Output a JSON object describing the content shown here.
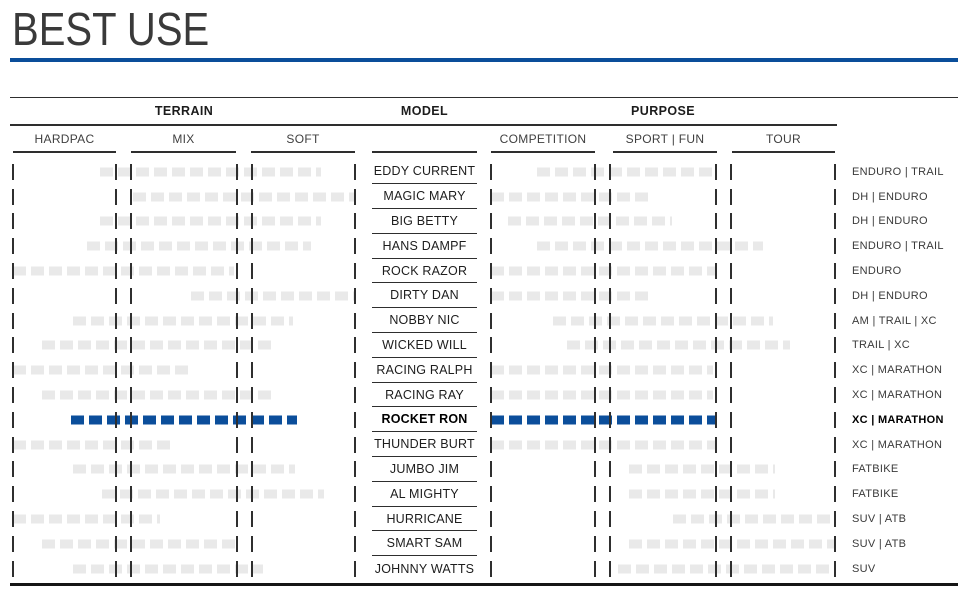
{
  "title": "BEST USE",
  "colors": {
    "accent_blue": "#0a4e9a",
    "bar_gray": "#e9e9e9",
    "bar_highlight_blue": "#0b4e9b"
  },
  "table": {
    "groups": [
      {
        "id": "terrain",
        "label": "TERRAIN",
        "subcolumns": [
          "HARDPAC",
          "MIX",
          "SOFT"
        ]
      },
      {
        "id": "model",
        "label": "MODEL"
      },
      {
        "id": "purpose",
        "label": "PURPOSE",
        "subcolumns": [
          "COMPETITION",
          "SPORT | FUN",
          "TOUR"
        ]
      }
    ]
  },
  "chart_data": {
    "type": "table",
    "title": "BEST USE",
    "terrain_scale": [
      "HARDPAC",
      "MIX",
      "SOFT"
    ],
    "purpose_scale": [
      "COMPETITION",
      "SPORT | FUN",
      "TOUR"
    ],
    "range_units": "percent of scale strip, 0-100",
    "rows": [
      {
        "model": "EDDY CURRENT",
        "best_use": "ENDURO | TRAIL",
        "terrain": [
          25.5,
          90
        ],
        "purpose": [
          13.5,
          65
        ],
        "highlight": false
      },
      {
        "model": "MAGIC MARY",
        "best_use": "DH | ENDURO",
        "terrain": [
          35,
          100
        ],
        "purpose": [
          0,
          47
        ],
        "highlight": false
      },
      {
        "model": "BIG BETTY",
        "best_use": "DH | ENDURO",
        "terrain": [
          25.5,
          90
        ],
        "purpose": [
          5,
          52.5
        ],
        "highlight": false
      },
      {
        "model": "HANS DAMPF",
        "best_use": "ENDURO | TRAIL",
        "terrain": [
          21.5,
          87
        ],
        "purpose": [
          13.5,
          79
        ],
        "highlight": false
      },
      {
        "model": "ROCK RAZOR",
        "best_use": "ENDURO",
        "terrain": [
          0,
          64.5
        ],
        "purpose": [
          0,
          65
        ],
        "highlight": false
      },
      {
        "model": "DIRTY DAN",
        "best_use": "DH | ENDURO",
        "terrain": [
          52,
          100
        ],
        "purpose": [
          0,
          47
        ],
        "highlight": false
      },
      {
        "model": "NOBBY NIC",
        "best_use": "AM | TRAIL | XC",
        "terrain": [
          17.5,
          82
        ],
        "purpose": [
          18,
          82
        ],
        "highlight": false
      },
      {
        "model": "WICKED WILL",
        "best_use": "TRAIL | XC",
        "terrain": [
          8.5,
          77
        ],
        "purpose": [
          22,
          87
        ],
        "highlight": false
      },
      {
        "model": "RACING RALPH",
        "best_use": "XC | MARATHON",
        "terrain": [
          0,
          52.5
        ],
        "purpose": [
          0,
          64.5
        ],
        "highlight": false
      },
      {
        "model": "RACING RAY",
        "best_use": "XC | MARATHON",
        "terrain": [
          8.5,
          77
        ],
        "purpose": [
          0,
          64.5
        ],
        "highlight": false
      },
      {
        "model": "ROCKET RON",
        "best_use": "XC | MARATHON",
        "terrain": [
          17,
          83
        ],
        "purpose": [
          0,
          65.4
        ],
        "highlight": true
      },
      {
        "model": "THUNDER BURT",
        "best_use": "XC | MARATHON",
        "terrain": [
          0,
          47.5
        ],
        "purpose": [
          0,
          65.4
        ],
        "highlight": false
      },
      {
        "model": "JUMBO JIM",
        "best_use": "FATBIKE",
        "terrain": [
          17.5,
          82.5
        ],
        "purpose": [
          40,
          82.5
        ],
        "highlight": false
      },
      {
        "model": "AL MIGHTY",
        "best_use": "FATBIKE",
        "terrain": [
          26,
          91
        ],
        "purpose": [
          40,
          82.5
        ],
        "highlight": false
      },
      {
        "model": "HURRICANE",
        "best_use": "SUV | ATB",
        "terrain": [
          0,
          43
        ],
        "purpose": [
          53,
          100
        ],
        "highlight": false
      },
      {
        "model": "SMART SAM",
        "best_use": "SUV | ATB",
        "terrain": [
          8.5,
          65.5
        ],
        "purpose": [
          40,
          100
        ],
        "highlight": false
      },
      {
        "model": "JOHNNY WATTS",
        "best_use": "SUV",
        "terrain": [
          17.5,
          73
        ],
        "purpose": [
          37,
          98.5
        ],
        "highlight": false
      }
    ]
  }
}
